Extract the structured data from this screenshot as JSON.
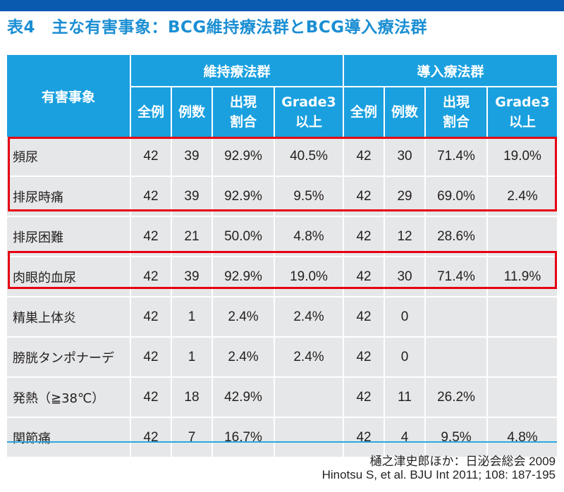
{
  "title": "表4　主な有害事象：BCG維持療法群とBCG導入療法群",
  "header": {
    "event_col": "有害事象",
    "group_maintenance": "維持療法群",
    "group_induction": "導入療法群",
    "sub": {
      "all": "全例",
      "count": "例数",
      "rate_line1": "出現",
      "rate_line2": "割合",
      "grade_line1": "Grade3",
      "grade_line2": "以上"
    }
  },
  "rows": [
    {
      "event": "頻尿",
      "m_all": "42",
      "m_n": "39",
      "m_rate": "92.9%",
      "m_g3": "40.5%",
      "i_all": "42",
      "i_n": "30",
      "i_rate": "71.4%",
      "i_g3": "19.0%"
    },
    {
      "event": "排尿時痛",
      "m_all": "42",
      "m_n": "39",
      "m_rate": "92.9%",
      "m_g3": "9.5%",
      "i_all": "42",
      "i_n": "29",
      "i_rate": "69.0%",
      "i_g3": "2.4%"
    },
    {
      "event": "排尿困難",
      "m_all": "42",
      "m_n": "21",
      "m_rate": "50.0%",
      "m_g3": "4.8%",
      "i_all": "42",
      "i_n": "12",
      "i_rate": "28.6%",
      "i_g3": ""
    },
    {
      "event": "肉眼的血尿",
      "m_all": "42",
      "m_n": "39",
      "m_rate": "92.9%",
      "m_g3": "19.0%",
      "i_all": "42",
      "i_n": "30",
      "i_rate": "71.4%",
      "i_g3": "11.9%"
    },
    {
      "event": "精巣上体炎",
      "m_all": "42",
      "m_n": "1",
      "m_rate": "2.4%",
      "m_g3": "2.4%",
      "i_all": "42",
      "i_n": "0",
      "i_rate": "",
      "i_g3": ""
    },
    {
      "event": "膀胱タンポナーデ",
      "m_all": "42",
      "m_n": "1",
      "m_rate": "2.4%",
      "m_g3": "2.4%",
      "i_all": "42",
      "i_n": "0",
      "i_rate": "",
      "i_g3": ""
    },
    {
      "event": "発熱（≧38℃）",
      "m_all": "42",
      "m_n": "18",
      "m_rate": "42.9%",
      "m_g3": "",
      "i_all": "42",
      "i_n": "11",
      "i_rate": "26.2%",
      "i_g3": ""
    },
    {
      "event": "関節痛",
      "m_all": "42",
      "m_n": "7",
      "m_rate": "16.7%",
      "m_g3": "",
      "i_all": "42",
      "i_n": "4",
      "i_rate": "9.5%",
      "i_g3": "4.8%"
    }
  ],
  "source": {
    "line1": "樋之津史郎ほか：日泌会総会 2009",
    "line2": "Hinotsu S, et al. BJU Int 2011; 108: 187-195"
  },
  "colors": {
    "title": "#1a8ed3",
    "header_bg": "#1aa0df",
    "row_bg": "#e6e7e8",
    "highlight": "#e60012",
    "top_rule": "#0a5bb0"
  }
}
